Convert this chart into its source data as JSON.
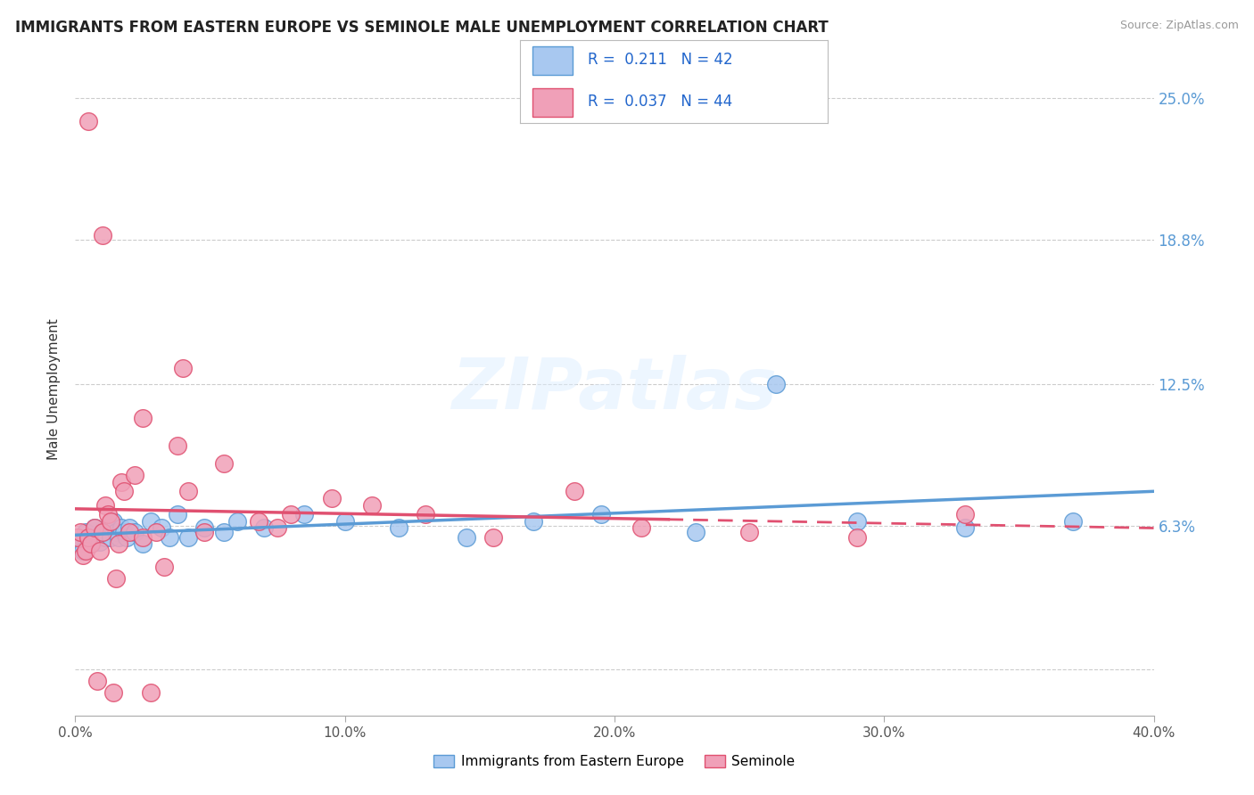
{
  "title": "IMMIGRANTS FROM EASTERN EUROPE VS SEMINOLE MALE UNEMPLOYMENT CORRELATION CHART",
  "source_text": "Source: ZipAtlas.com",
  "ylabel": "Male Unemployment",
  "xlim": [
    0.0,
    0.4
  ],
  "ylim": [
    -0.02,
    0.265
  ],
  "yticks": [
    0.0,
    0.063,
    0.125,
    0.188,
    0.25
  ],
  "ytick_labels": [
    "",
    "6.3%",
    "12.5%",
    "18.8%",
    "25.0%"
  ],
  "xticks": [
    0.0,
    0.1,
    0.2,
    0.3,
    0.4
  ],
  "xtick_labels": [
    "0.0%",
    "10.0%",
    "20.0%",
    "30.0%",
    "40.0%"
  ],
  "series1_color": "#a8c8f0",
  "series2_color": "#f0a0b8",
  "trend1_color": "#5b9bd5",
  "trend2_color": "#e05070",
  "legend_label1": "Immigrants from Eastern Europe",
  "legend_label2": "Seminole",
  "watermark": "ZIPatlas",
  "background_color": "#ffffff",
  "grid_color": "#cccccc",
  "blue_points_x": [
    0.001,
    0.002,
    0.003,
    0.004,
    0.005,
    0.006,
    0.007,
    0.008,
    0.009,
    0.01,
    0.011,
    0.012,
    0.013,
    0.014,
    0.015,
    0.016,
    0.017,
    0.018,
    0.019,
    0.02,
    0.022,
    0.025,
    0.028,
    0.032,
    0.035,
    0.038,
    0.042,
    0.048,
    0.055,
    0.06,
    0.07,
    0.085,
    0.1,
    0.12,
    0.145,
    0.17,
    0.195,
    0.23,
    0.26,
    0.29,
    0.33,
    0.37
  ],
  "blue_points_y": [
    0.058,
    0.055,
    0.052,
    0.06,
    0.058,
    0.055,
    0.062,
    0.058,
    0.056,
    0.06,
    0.058,
    0.062,
    0.058,
    0.065,
    0.06,
    0.058,
    0.062,
    0.06,
    0.058,
    0.062,
    0.06,
    0.055,
    0.065,
    0.062,
    0.058,
    0.068,
    0.058,
    0.062,
    0.06,
    0.065,
    0.062,
    0.068,
    0.065,
    0.062,
    0.058,
    0.065,
    0.068,
    0.06,
    0.125,
    0.065,
    0.062,
    0.065
  ],
  "pink_points_x": [
    0.001,
    0.002,
    0.003,
    0.004,
    0.005,
    0.006,
    0.007,
    0.008,
    0.009,
    0.01,
    0.011,
    0.012,
    0.013,
    0.014,
    0.015,
    0.016,
    0.017,
    0.018,
    0.02,
    0.022,
    0.025,
    0.028,
    0.03,
    0.033,
    0.038,
    0.042,
    0.048,
    0.055,
    0.068,
    0.08,
    0.095,
    0.11,
    0.13,
    0.155,
    0.185,
    0.21,
    0.25,
    0.29,
    0.33,
    0.025,
    0.005,
    0.01,
    0.04,
    0.075
  ],
  "pink_points_y": [
    0.058,
    0.06,
    0.05,
    0.052,
    0.058,
    0.055,
    0.062,
    -0.005,
    0.052,
    0.06,
    0.072,
    0.068,
    0.065,
    -0.01,
    0.04,
    0.055,
    0.082,
    0.078,
    0.06,
    0.085,
    0.058,
    -0.01,
    0.06,
    0.045,
    0.098,
    0.078,
    0.06,
    0.09,
    0.065,
    0.068,
    0.075,
    0.072,
    0.068,
    0.058,
    0.078,
    0.062,
    0.06,
    0.058,
    0.068,
    0.11,
    0.24,
    0.19,
    0.132,
    0.062
  ]
}
